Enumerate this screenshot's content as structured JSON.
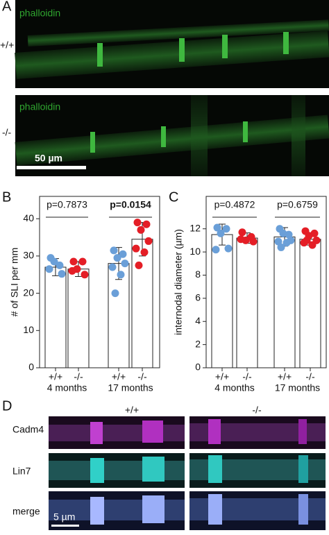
{
  "panel_labels": [
    "A",
    "B",
    "C",
    "D"
  ],
  "panel_a": {
    "stain": "phalloidin",
    "genotypes": [
      "+/+",
      "-/-"
    ],
    "scale_bar": "50 µm"
  },
  "chart_data": [
    {
      "type": "bar",
      "ylabel": "# of SLI per mm",
      "categories": [
        "+/+",
        "-/-",
        "+/+",
        "-/-"
      ],
      "groups": [
        "4 months",
        "17 months"
      ],
      "values": [
        27,
        26.5,
        28,
        34.5
      ],
      "errors": [
        2.3,
        2,
        4.3,
        4.5
      ],
      "points": [
        [
          29.5,
          27.5,
          28.5,
          25.2,
          26.5
        ],
        [
          28.5,
          28.5,
          26.5,
          25,
          26
        ],
        [
          31.5,
          30.5,
          29.5,
          28,
          27,
          25,
          20
        ],
        [
          39,
          38.5,
          37,
          34,
          32,
          31,
          27.5
        ]
      ],
      "point_colors": [
        "#6a9fd8",
        "#e41e26",
        "#6a9fd8",
        "#e41e26"
      ],
      "bar_color": "#ffffff",
      "ylim": [
        0,
        46
      ],
      "yticks": [
        0,
        10,
        20,
        30,
        40
      ],
      "annotations": [
        {
          "text": "p=0.7873",
          "bold": false
        },
        {
          "text": "p=0.0154",
          "bold": true
        }
      ]
    },
    {
      "type": "bar",
      "ylabel": "internodal diameter (µm)",
      "categories": [
        "+/+",
        "-/-",
        "+/+",
        "-/-"
      ],
      "groups": [
        "4 months",
        "17 months"
      ],
      "values": [
        11.5,
        11.2,
        11.3,
        11.1
      ],
      "errors": [
        0.9,
        0.45,
        0.8,
        0.5
      ],
      "points": [
        [
          12.1,
          12.0,
          11.6,
          10.3,
          10.2
        ],
        [
          11.7,
          11.3,
          11.0,
          10.9,
          11.1
        ],
        [
          12.0,
          11.5,
          11.6,
          11.0,
          10.9,
          10.8,
          10.4
        ],
        [
          11.8,
          11.6,
          11.4,
          11.0,
          10.8,
          10.6,
          11.0
        ]
      ],
      "point_colors": [
        "#6a9fd8",
        "#e41e26",
        "#6a9fd8",
        "#e41e26"
      ],
      "bar_color": "#ffffff",
      "ylim": [
        0,
        14.8
      ],
      "yticks": [
        0,
        2,
        4,
        6,
        8,
        10,
        12
      ],
      "annotations": [
        {
          "text": "p=0.4872",
          "bold": false
        },
        {
          "text": "p=0.6759",
          "bold": false
        }
      ]
    }
  ],
  "panel_d": {
    "genotypes": [
      "+/+",
      "-/-"
    ],
    "rows": [
      "Cadm4",
      "Lin7",
      "merge"
    ],
    "scale_bar": "5 µm"
  }
}
